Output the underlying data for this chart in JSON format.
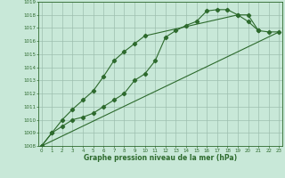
{
  "series1_x": [
    0,
    1,
    2,
    3,
    4,
    5,
    6,
    7,
    8,
    9,
    10,
    11,
    12,
    13,
    14,
    15,
    16,
    17,
    18,
    19,
    20,
    21,
    22,
    23
  ],
  "series1_y": [
    1008,
    1009,
    1009.5,
    1010,
    1010.2,
    1010.5,
    1011,
    1011.5,
    1012,
    1013,
    1013.5,
    1014.5,
    1016.3,
    1016.8,
    1017.2,
    1017.5,
    1018.3,
    1018.4,
    1018.4,
    1018.0,
    1018.0,
    1016.8,
    1016.7,
    1016.7
  ],
  "series2_x": [
    0,
    1,
    2,
    3,
    4,
    5,
    6,
    7,
    8,
    9,
    10,
    19,
    20,
    21
  ],
  "series2_y": [
    1008,
    1009,
    1010,
    1010.8,
    1011.5,
    1012.2,
    1013.3,
    1014.5,
    1015.2,
    1015.8,
    1016.4,
    1018.0,
    1017.5,
    1016.8
  ],
  "series3_x": [
    0,
    23
  ],
  "series3_y": [
    1008,
    1016.7
  ],
  "ylim": [
    1008,
    1019
  ],
  "yticks": [
    1008,
    1009,
    1010,
    1011,
    1012,
    1013,
    1014,
    1015,
    1016,
    1017,
    1018,
    1019
  ],
  "xlim": [
    -0.3,
    23.3
  ],
  "xticks": [
    0,
    1,
    2,
    3,
    4,
    5,
    6,
    7,
    8,
    9,
    10,
    11,
    12,
    13,
    14,
    15,
    16,
    17,
    18,
    19,
    20,
    21,
    22,
    23
  ],
  "xlabel": "Graphe pression niveau de la mer (hPa)",
  "line_color": "#2d6a2d",
  "bg_color": "#c8e8d8",
  "grid_color": "#9dbfaf",
  "marker": "D",
  "marker_size": 2.2,
  "linewidth": 0.8
}
